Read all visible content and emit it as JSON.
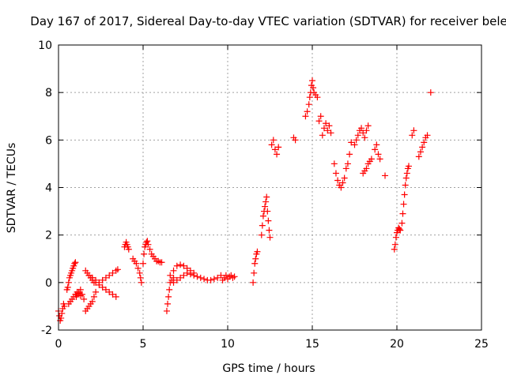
{
  "chart_data": {
    "type": "scatter",
    "title": "Day 167 of 2017, Sidereal Day-to-day VTEC variation (SDTVAR) for receiver bele",
    "xlabel": "GPS time / hours",
    "ylabel": "SDTVAR / TECUs",
    "xlim": [
      0,
      25
    ],
    "ylim": [
      -2,
      10
    ],
    "xticks": [
      "0",
      "5",
      "10",
      "15",
      "20",
      "25"
    ],
    "yticks": [
      "-2",
      "0",
      "2",
      "4",
      "6",
      "8",
      "10"
    ],
    "grid": true,
    "marker": "+",
    "color": "#ff0000",
    "series": [
      {
        "name": "SDTVAR",
        "x": [
          0.0,
          0.05,
          0.1,
          0.15,
          0.2,
          0.25,
          0.3,
          0.35,
          0.5,
          0.55,
          0.6,
          0.65,
          0.7,
          0.75,
          0.8,
          0.85,
          0.9,
          0.95,
          1.0,
          1.05,
          1.1,
          1.2,
          1.3,
          1.4,
          1.5,
          0.6,
          0.7,
          0.8,
          0.9,
          1.0,
          1.1,
          1.2,
          1.3,
          1.6,
          1.7,
          1.8,
          1.9,
          2.0,
          2.1,
          2.2,
          1.6,
          1.7,
          1.8,
          1.9,
          2.0,
          2.1,
          2.0,
          2.2,
          2.4,
          2.6,
          2.8,
          3.0,
          3.2,
          3.4,
          1.8,
          2.0,
          2.2,
          2.4,
          2.6,
          2.8,
          3.0,
          3.2,
          3.4,
          3.5,
          3.9,
          3.95,
          4.0,
          4.05,
          4.1,
          4.15,
          4.4,
          4.5,
          4.6,
          4.7,
          4.8,
          4.85,
          4.9,
          5.0,
          5.05,
          5.1,
          5.15,
          5.2,
          5.25,
          5.3,
          5.4,
          5.5,
          5.6,
          5.7,
          5.8,
          5.9,
          6.0,
          6.1,
          6.4,
          6.45,
          6.5,
          6.55,
          6.6,
          6.7,
          6.8,
          6.6,
          6.8,
          7.0,
          7.2,
          7.4,
          7.6,
          7.8,
          8.0,
          6.8,
          7.0,
          7.2,
          7.4,
          7.6,
          7.8,
          8.0,
          8.2,
          8.4,
          8.6,
          8.8,
          9.0,
          9.2,
          9.4,
          9.6,
          9.7,
          9.8,
          9.9,
          10.0,
          10.1,
          10.2,
          10.3,
          10.4,
          11.5,
          11.55,
          11.6,
          11.65,
          11.7,
          11.75,
          12.0,
          12.05,
          12.1,
          12.15,
          12.2,
          12.25,
          12.3,
          12.35,
          12.4,
          12.45,
          12.5,
          12.6,
          12.7,
          12.8,
          12.9,
          13.0,
          13.9,
          14.0,
          14.6,
          14.7,
          14.8,
          14.85,
          14.9,
          14.95,
          15.0,
          15.05,
          15.1,
          15.2,
          15.3,
          15.4,
          15.5,
          15.6,
          15.7,
          15.8,
          15.9,
          16.0,
          16.1,
          16.3,
          16.4,
          16.5,
          16.6,
          16.7,
          16.8,
          16.9,
          17.0,
          17.1,
          17.2,
          17.3,
          17.5,
          17.6,
          17.7,
          17.8,
          17.9,
          18.0,
          18.1,
          18.2,
          18.3,
          18.0,
          18.1,
          18.2,
          18.3,
          18.4,
          18.5,
          18.7,
          18.8,
          18.9,
          19.0,
          19.3,
          19.85,
          19.9,
          19.95,
          20.0,
          20.05,
          20.1,
          20.15,
          20.2,
          20.3,
          20.35,
          20.4,
          20.45,
          20.5,
          20.55,
          20.6,
          20.65,
          20.7,
          20.9,
          21.0,
          21.3,
          21.4,
          21.5,
          21.6,
          21.7,
          21.8,
          22.0
        ],
        "y": [
          -1.2,
          -1.4,
          -1.6,
          -1.5,
          -1.3,
          -1.1,
          -0.9,
          -1.0,
          -0.3,
          -0.2,
          0.0,
          0.2,
          0.3,
          0.4,
          0.5,
          0.6,
          0.7,
          0.8,
          0.85,
          -0.6,
          -0.5,
          -0.4,
          -0.3,
          -0.5,
          -0.7,
          -0.9,
          -0.8,
          -0.7,
          -0.6,
          -0.5,
          -0.4,
          -0.45,
          -0.55,
          -1.2,
          -1.1,
          -1.0,
          -0.9,
          -0.8,
          -0.6,
          -0.4,
          0.5,
          0.4,
          0.3,
          0.2,
          0.1,
          0.0,
          0.2,
          0.0,
          -0.1,
          -0.2,
          -0.3,
          -0.4,
          -0.5,
          -0.6,
          0.3,
          0.2,
          0.1,
          0.0,
          0.1,
          0.2,
          0.3,
          0.4,
          0.5,
          0.55,
          1.5,
          1.6,
          1.7,
          1.6,
          1.5,
          1.4,
          1.0,
          0.9,
          0.8,
          0.6,
          0.4,
          0.2,
          0.0,
          0.8,
          1.2,
          1.5,
          1.6,
          1.7,
          1.75,
          1.6,
          1.4,
          1.2,
          1.1,
          1.0,
          0.9,
          0.9,
          0.85,
          0.85,
          -1.2,
          -0.9,
          -0.6,
          -0.3,
          0.0,
          0.1,
          0.2,
          0.3,
          0.5,
          0.7,
          0.75,
          0.7,
          0.6,
          0.5,
          0.4,
          0.0,
          0.1,
          0.2,
          0.3,
          0.4,
          0.35,
          0.3,
          0.25,
          0.2,
          0.15,
          0.1,
          0.1,
          0.15,
          0.2,
          0.3,
          0.1,
          0.2,
          0.3,
          0.15,
          0.25,
          0.3,
          0.2,
          0.25,
          0.0,
          0.4,
          0.8,
          1.0,
          1.2,
          1.3,
          2.0,
          2.4,
          2.8,
          3.0,
          3.2,
          3.4,
          3.6,
          3.0,
          2.6,
          2.2,
          1.9,
          5.8,
          6.0,
          5.6,
          5.4,
          5.7,
          6.1,
          6.0,
          7.0,
          7.2,
          7.5,
          7.8,
          8.0,
          8.3,
          8.5,
          8.2,
          8.0,
          7.9,
          7.8,
          6.8,
          7.0,
          6.2,
          6.5,
          6.7,
          6.4,
          6.6,
          6.3,
          5.0,
          4.6,
          4.3,
          4.1,
          4.0,
          4.2,
          4.4,
          4.8,
          5.0,
          5.4,
          5.9,
          5.8,
          6.0,
          6.2,
          6.4,
          6.5,
          6.3,
          6.1,
          6.4,
          6.6,
          4.6,
          4.7,
          4.8,
          5.0,
          5.1,
          5.2,
          5.6,
          5.8,
          5.4,
          5.2,
          4.5,
          1.4,
          1.6,
          1.9,
          2.1,
          2.2,
          2.3,
          2.25,
          2.2,
          2.5,
          2.9,
          3.3,
          3.7,
          4.1,
          4.4,
          4.6,
          4.8,
          4.9,
          6.2,
          6.4,
          5.3,
          5.5,
          5.7,
          5.9,
          6.1,
          6.2,
          8.0
        ]
      }
    ]
  }
}
